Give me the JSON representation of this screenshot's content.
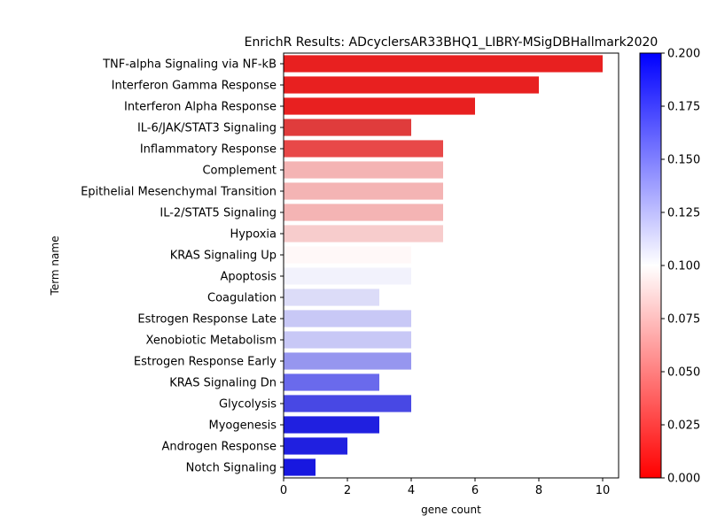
{
  "chart_data": {
    "type": "bar",
    "orientation": "horizontal",
    "title": "EnrichR Results: ADcyclersAR33BHQ1_LIBRY-MSigDBHallmark2020",
    "xlabel": "gene count",
    "ylabel": "Term name",
    "xlim": [
      0,
      10.5
    ],
    "xticks": [
      "0",
      "2",
      "4",
      "6",
      "8",
      "10"
    ],
    "grid": false,
    "categories": [
      "TNF-alpha Signaling via NF-kB",
      "Interferon Gamma Response",
      "Interferon Alpha Response",
      "IL-6/JAK/STAT3 Signaling",
      "Inflammatory Response",
      "Complement",
      "Epithelial Mesenchymal Transition",
      "IL-2/STAT5 Signaling",
      "Hypoxia",
      "KRAS Signaling Up",
      "Apoptosis",
      "Coagulation",
      "Estrogen Response Late",
      "Xenobiotic Metabolism",
      "Estrogen Response Early",
      "KRAS Signaling Dn",
      "Glycolysis",
      "Myogenesis",
      "Androgen Response",
      "Notch Signaling"
    ],
    "values": [
      10,
      8,
      6,
      4,
      5,
      5,
      5,
      5,
      5,
      4,
      4,
      3,
      4,
      4,
      4,
      3,
      4,
      3,
      2,
      1
    ],
    "colors": [
      "#e82020",
      "#e82020",
      "#e82020",
      "#e03c3c",
      "#e84848",
      "#f4b4b4",
      "#f4b4b4",
      "#f4b4b4",
      "#f7cccc",
      "#fff8f8",
      "#f2f2fc",
      "#dcdcf8",
      "#c8c8f6",
      "#c8c8f6",
      "#9696ef",
      "#6a6aec",
      "#4848e4",
      "#2020e0",
      "#2020e0",
      "#1818e0"
    ],
    "colorbar": {
      "ticks": [
        "0.000",
        "0.025",
        "0.050",
        "0.075",
        "0.100",
        "0.125",
        "0.150",
        "0.175",
        "0.200"
      ],
      "range": [
        0.0,
        0.2
      ],
      "colors": [
        "#ff0000",
        "#ffffff",
        "#0000ff"
      ]
    }
  }
}
